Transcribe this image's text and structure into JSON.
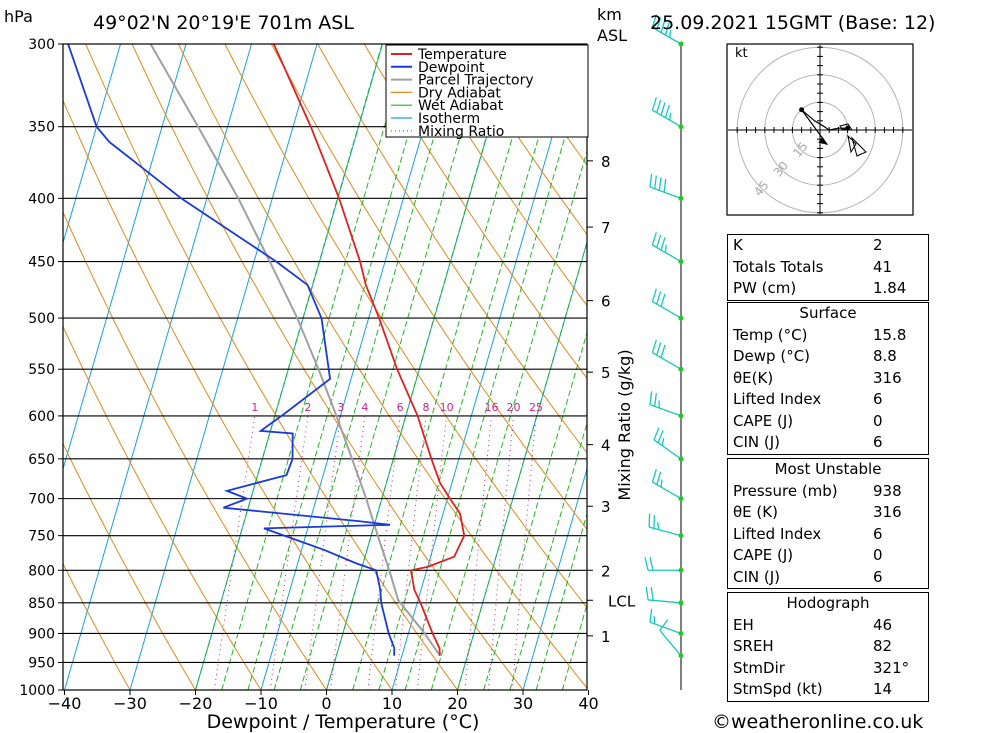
{
  "header": {
    "pressure_unit": "hPa",
    "location": "49°02'N  20°19'E  701m  ASL",
    "height_unit_line1": "km",
    "height_unit_line2": "ASL",
    "datetime": "25.09.2021  15GMT  (Base: 12)"
  },
  "colors": {
    "temperature": "#e02020",
    "dewpoint": "#1a3ad8",
    "parcel": "#a0a0a0",
    "dry_adiabat": "#e08a1c",
    "wet_adiabat": "#22b422",
    "isotherm": "#18a0e0",
    "mixing_ratio": "#d0208a",
    "wind_barb": "#14c8c0",
    "wind_dot": "#22c822"
  },
  "chart_data": {
    "type": "skew-t",
    "xlabel": "Dewpoint / Temperature (°C)",
    "ylabel_right": "Mixing Ratio (g/kg)",
    "pressure_levels": [
      300,
      350,
      400,
      450,
      500,
      550,
      600,
      650,
      700,
      750,
      800,
      850,
      900,
      950,
      1000
    ],
    "pressure_labels": [
      "300",
      "350",
      "400",
      "450",
      "500",
      "550",
      "600",
      "650",
      "700",
      "750",
      "800",
      "850",
      "900",
      "950",
      "1000"
    ],
    "pressure_range": [
      1000,
      300
    ],
    "temperature_ticks": [
      "−40",
      "−30",
      "−20",
      "−10",
      "0",
      "10",
      "20",
      "30",
      "40"
    ],
    "temperature_tick_values": [
      -40,
      -30,
      -20,
      -10,
      0,
      10,
      20,
      30,
      40
    ],
    "height_labels": [
      {
        "km": "8",
        "p": 373
      },
      {
        "km": "7",
        "p": 422
      },
      {
        "km": "6",
        "p": 484
      },
      {
        "km": "5",
        "p": 553
      },
      {
        "km": "4",
        "p": 633
      },
      {
        "km": "3",
        "p": 710
      },
      {
        "km": "2",
        "p": 800
      },
      {
        "km": "LCL",
        "p": 846
      },
      {
        "km": "1",
        "p": 904
      }
    ],
    "mixing_ratio_labels": [
      "1",
      "2",
      "3",
      "4",
      "6",
      "8",
      "10",
      "16",
      "20",
      "25"
    ],
    "mixing_ratio_values": [
      1,
      2,
      3,
      4,
      6,
      8,
      10,
      16,
      20,
      25
    ],
    "legend": [
      "Temperature",
      "Dewpoint",
      "Parcel Trajectory",
      "Dry Adiabat",
      "Wet Adiabat",
      "Isotherm",
      "Mixing Ratio"
    ],
    "temperature_profile": [
      {
        "p": 938,
        "t": 15.8
      },
      {
        "p": 925,
        "t": 15.4
      },
      {
        "p": 900,
        "t": 13.7
      },
      {
        "p": 850,
        "t": 10.5
      },
      {
        "p": 830,
        "t": 9.0
      },
      {
        "p": 800,
        "t": 7.6
      },
      {
        "p": 795,
        "t": 10.0
      },
      {
        "p": 780,
        "t": 13.6
      },
      {
        "p": 750,
        "t": 14.2
      },
      {
        "p": 720,
        "t": 12.6
      },
      {
        "p": 700,
        "t": 10.4
      },
      {
        "p": 680,
        "t": 8.2
      },
      {
        "p": 650,
        "t": 5.8
      },
      {
        "p": 600,
        "t": 1.8
      },
      {
        "p": 550,
        "t": -3.4
      },
      {
        "p": 500,
        "t": -8.4
      },
      {
        "p": 470,
        "t": -11.9
      },
      {
        "p": 450,
        "t": -13.8
      },
      {
        "p": 400,
        "t": -19.8
      },
      {
        "p": 350,
        "t": -27.3
      },
      {
        "p": 300,
        "t": -36.6
      }
    ],
    "dewpoint_profile": [
      {
        "p": 938,
        "t": 8.8
      },
      {
        "p": 925,
        "t": 8.5
      },
      {
        "p": 900,
        "t": 7.0
      },
      {
        "p": 850,
        "t": 4.5
      },
      {
        "p": 830,
        "t": 3.8
      },
      {
        "p": 800,
        "t": 2.3
      },
      {
        "p": 790,
        "t": -1.0
      },
      {
        "p": 770,
        "t": -6.6
      },
      {
        "p": 740,
        "t": -16.7
      },
      {
        "p": 735,
        "t": 2.4
      },
      {
        "p": 730,
        "t": -2.6
      },
      {
        "p": 712,
        "t": -23.8
      },
      {
        "p": 700,
        "t": -20.6
      },
      {
        "p": 690,
        "t": -24.0
      },
      {
        "p": 670,
        "t": -15.6
      },
      {
        "p": 650,
        "t": -15.4
      },
      {
        "p": 620,
        "t": -16.5
      },
      {
        "p": 617,
        "t": -21.5
      },
      {
        "p": 598,
        "t": -18.7
      },
      {
        "p": 560,
        "t": -13.2
      },
      {
        "p": 500,
        "t": -17.2
      },
      {
        "p": 470,
        "t": -20.8
      },
      {
        "p": 450,
        "t": -26.6
      },
      {
        "p": 400,
        "t": -43.9
      },
      {
        "p": 360,
        "t": -57.4
      },
      {
        "p": 350,
        "t": -60.0
      },
      {
        "p": 300,
        "t": -68.0
      }
    ],
    "parcel_profile": [
      {
        "p": 938,
        "t": 15.8
      },
      {
        "p": 900,
        "t": 12.5
      },
      {
        "p": 846,
        "t": 7.0
      },
      {
        "p": 800,
        "t": 4.3
      },
      {
        "p": 750,
        "t": 1.0
      },
      {
        "p": 700,
        "t": -2.4
      },
      {
        "p": 650,
        "t": -6.3
      },
      {
        "p": 600,
        "t": -10.6
      },
      {
        "p": 550,
        "t": -15.4
      },
      {
        "p": 500,
        "t": -20.9
      },
      {
        "p": 450,
        "t": -27.6
      },
      {
        "p": 400,
        "t": -35.2
      },
      {
        "p": 350,
        "t": -44.5
      },
      {
        "p": 300,
        "t": -55.4
      }
    ],
    "wind_profile": [
      {
        "p": 938,
        "dir": 320,
        "spd": 10
      },
      {
        "p": 900,
        "dir": 290,
        "spd": 15
      },
      {
        "p": 850,
        "dir": 275,
        "spd": 20
      },
      {
        "p": 800,
        "dir": 270,
        "spd": 20
      },
      {
        "p": 750,
        "dir": 285,
        "spd": 25
      },
      {
        "p": 700,
        "dir": 300,
        "spd": 25
      },
      {
        "p": 650,
        "dir": 305,
        "spd": 25
      },
      {
        "p": 600,
        "dir": 290,
        "spd": 25
      },
      {
        "p": 550,
        "dir": 300,
        "spd": 30
      },
      {
        "p": 500,
        "dir": 300,
        "spd": 30
      },
      {
        "p": 450,
        "dir": 300,
        "spd": 35
      },
      {
        "p": 400,
        "dir": 290,
        "spd": 40
      },
      {
        "p": 350,
        "dir": 300,
        "spd": 45
      },
      {
        "p": 300,
        "dir": 300,
        "spd": 45
      }
    ]
  },
  "hodograph": {
    "unit": "kt",
    "ring_labels": [
      "15",
      "30",
      "45"
    ],
    "ring_values": [
      15,
      30,
      45
    ],
    "max_kt": 50,
    "trace": [
      {
        "u": -10,
        "v": 11
      },
      {
        "u": -3,
        "v": 5
      },
      {
        "u": 2,
        "v": 2
      },
      {
        "u": 5,
        "v": 0
      },
      {
        "u": 10,
        "v": 1
      },
      {
        "u": 15,
        "v": 1
      }
    ],
    "storm_motion": {
      "u": 4,
      "v": -8
    }
  },
  "indices": {
    "rows": [
      {
        "label": "K",
        "value": "2"
      },
      {
        "label": "Totals Totals",
        "value": "41"
      },
      {
        "label": "PW (cm)",
        "value": "1.84"
      }
    ]
  },
  "surface": {
    "title": "Surface",
    "rows": [
      {
        "label": "Temp (°C)",
        "value": "15.8"
      },
      {
        "label": "Dewp (°C)",
        "value": "8.8"
      },
      {
        "label": "θE(K)",
        "value": "316"
      },
      {
        "label": "Lifted Index",
        "value": "6"
      },
      {
        "label": "CAPE (J)",
        "value": "0"
      },
      {
        "label": "CIN (J)",
        "value": "6"
      }
    ]
  },
  "most_unstable": {
    "title": "Most Unstable",
    "rows": [
      {
        "label": "Pressure (mb)",
        "value": "938"
      },
      {
        "label": "θE (K)",
        "value": "316"
      },
      {
        "label": "Lifted Index",
        "value": "6"
      },
      {
        "label": "CAPE (J)",
        "value": "0"
      },
      {
        "label": "CIN (J)",
        "value": "6"
      }
    ]
  },
  "hodograph_params": {
    "title": "Hodograph",
    "rows": [
      {
        "label": "EH",
        "value": "46"
      },
      {
        "label": "SREH",
        "value": "82"
      },
      {
        "label": "StmDir",
        "value": "321°"
      },
      {
        "label": "StmSpd (kt)",
        "value": "14"
      }
    ]
  },
  "footer": {
    "copyright_symbol": "©",
    "site": "weatheronline.co.uk"
  }
}
